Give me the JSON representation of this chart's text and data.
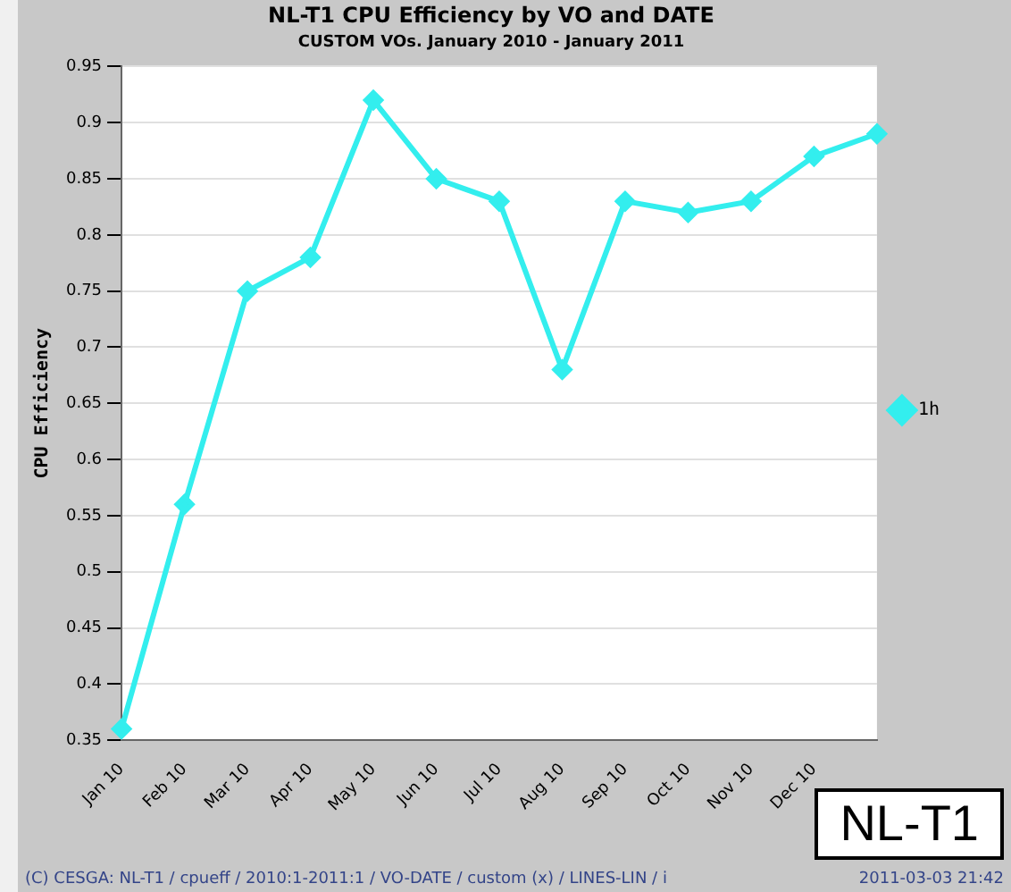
{
  "chart_data": {
    "type": "line",
    "title": "NL-T1 CPU Efficiency by VO and DATE",
    "subtitle": "CUSTOM VOs. January 2010 - January 2011",
    "ylabel": "CPU Efficiency",
    "categories": [
      "Jan 10",
      "Feb 10",
      "Mar 10",
      "Apr 10",
      "May 10",
      "Jun 10",
      "Jul 10",
      "Aug 10",
      "Sep 10",
      "Oct 10",
      "Nov 10",
      "Dec 10",
      null
    ],
    "series": [
      {
        "name": "1h",
        "color": "#33eeee",
        "values": [
          0.36,
          0.56,
          0.75,
          0.78,
          0.92,
          0.85,
          0.83,
          0.68,
          0.83,
          0.82,
          0.83,
          0.87,
          0.89
        ]
      }
    ],
    "ylim": [
      0.35,
      0.95
    ],
    "yticks": [
      0.35,
      0.4,
      0.45,
      0.5,
      0.55,
      0.6,
      0.65,
      0.7,
      0.75,
      0.8,
      0.85,
      0.9,
      0.95
    ],
    "grid": "y",
    "legend": "right",
    "marker": "diamond",
    "line_style": "solid",
    "annotations": [
      "(C) CESGA: NL-T1 / cpueff / 2010:1-2011:1 / VO-DATE / custom (x) / LINES-LIN / i",
      "2011-03-03 21:42",
      "NL-T1"
    ]
  }
}
